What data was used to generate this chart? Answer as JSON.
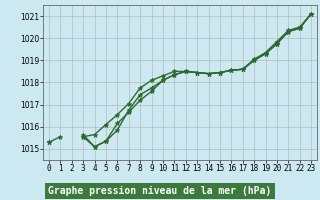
{
  "x": [
    0,
    1,
    2,
    3,
    4,
    5,
    6,
    7,
    8,
    9,
    10,
    11,
    12,
    13,
    14,
    15,
    16,
    17,
    18,
    19,
    20,
    21,
    22,
    23
  ],
  "y1": [
    1015.3,
    1015.55,
    null,
    1015.65,
    1015.1,
    1015.35,
    1015.85,
    1016.75,
    1017.45,
    1017.75,
    1018.1,
    1018.35,
    1018.5,
    1018.45,
    1018.4,
    1018.45,
    1018.55,
    1018.6,
    1019.0,
    1019.3,
    1019.75,
    1020.3,
    1020.45,
    1021.1
  ],
  "y2": [
    1015.3,
    null,
    null,
    1015.55,
    1015.1,
    1015.35,
    1016.15,
    1016.65,
    1017.2,
    1017.6,
    1018.1,
    1018.35,
    1018.5,
    1018.45,
    1018.4,
    1018.45,
    1018.55,
    1018.6,
    1019.0,
    1019.3,
    1019.75,
    1020.3,
    1020.45,
    1021.1
  ],
  "y3": [
    1015.3,
    null,
    null,
    1015.55,
    1015.65,
    1016.1,
    1016.55,
    1017.05,
    1017.75,
    1018.1,
    1018.3,
    1018.5,
    1018.5,
    1018.45,
    1018.4,
    1018.45,
    1018.55,
    1018.6,
    1019.05,
    1019.35,
    1019.85,
    1020.35,
    1020.5,
    1021.1
  ],
  "ylim": [
    1014.5,
    1021.5
  ],
  "xlim": [
    -0.5,
    23.5
  ],
  "yticks": [
    1015,
    1016,
    1017,
    1018,
    1019,
    1020,
    1021
  ],
  "xticks": [
    0,
    1,
    2,
    3,
    4,
    5,
    6,
    7,
    8,
    9,
    10,
    11,
    12,
    13,
    14,
    15,
    16,
    17,
    18,
    19,
    20,
    21,
    22,
    23
  ],
  "xlabel": "Graphe pression niveau de la mer (hPa)",
  "line_color": "#2d6a2d",
  "bg_color": "#cce8f0",
  "xlabel_bg": "#3a7a3a",
  "grid_color": "#b0b0b0",
  "marker": "*",
  "marker_size": 3.5,
  "linewidth": 1.0,
  "tick_fontsize": 5.5,
  "xlabel_fontsize": 7.0,
  "fig_width": 3.2,
  "fig_height": 2.0,
  "dpi": 100
}
